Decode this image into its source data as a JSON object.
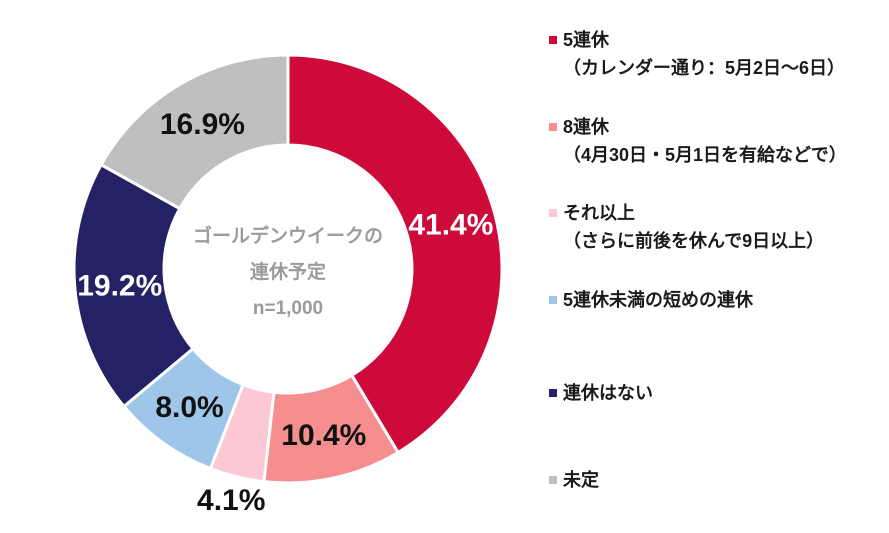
{
  "chart_data": {
    "type": "pie",
    "donut": true,
    "title": "ゴールデンウイークの連休予定",
    "start_angle_deg": -90,
    "direction": "clockwise",
    "legend_position": "right",
    "center_text": {
      "line1": "ゴールデンウイークの",
      "line2": "連休予定",
      "line3": "n=1,000"
    },
    "slices": [
      {
        "label": "5連休",
        "sublabel": "（カレンダー通り：5月2日～6日）",
        "value": 41.4,
        "display": "41.4%",
        "color": "#CE0A3A",
        "label_color": "#FFFFFF",
        "label_outside": false
      },
      {
        "label": "8連休",
        "sublabel": "（4月30日・5月1日を有給などで）",
        "value": 10.4,
        "display": "10.4%",
        "color": "#F68D8E",
        "label_color": "#111111",
        "label_outside": false
      },
      {
        "label": "それ以上",
        "sublabel": "（さらに前後を休んで9日以上）",
        "value": 4.1,
        "display": "4.1%",
        "color": "#FBC8D4",
        "label_color": "#111111",
        "label_outside": true
      },
      {
        "label": "5連休未満の短めの連休",
        "sublabel": "",
        "value": 8.0,
        "display": "8.0%",
        "color": "#9DC6E8",
        "label_color": "#111111",
        "label_outside": false
      },
      {
        "label": "連休はない",
        "sublabel": "",
        "value": 19.2,
        "display": "19.2%",
        "color": "#242164",
        "label_color": "#FFFFFF",
        "label_outside": false
      },
      {
        "label": "未定",
        "sublabel": "",
        "value": 16.9,
        "display": "16.9%",
        "color": "#BFBFBF",
        "label_color": "#111111",
        "label_outside": false
      }
    ],
    "slice_border_color": "#FFFFFF"
  }
}
